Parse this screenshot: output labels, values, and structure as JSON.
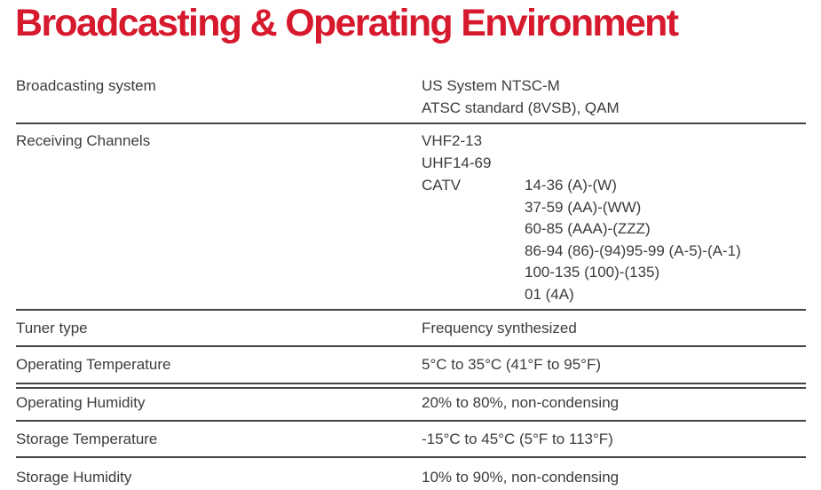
{
  "title": "Broadcasting & Operating Environment",
  "rows": [
    {
      "label": "Broadcasting system",
      "values": [
        "US System NTSC-M",
        "ATSC standard (8VSB), QAM"
      ]
    },
    {
      "label": "Receiving Channels",
      "values": [
        "VHF2-13",
        "UHF14-69",
        "CATV"
      ],
      "catv": [
        "14-36 (A)-(W)",
        "37-59 (AA)-(WW)",
        "60-85 (AAA)-(ZZZ)",
        "86-94 (86)-(94)95-99 (A-5)-(A-1)",
        "100-135 (100)-(135)",
        "01 (4A)"
      ]
    },
    {
      "label": "Tuner type",
      "values": [
        "Frequency synthesized"
      ]
    },
    {
      "label": "Operating Temperature",
      "values": [
        "5°C to 35°C (41°F to 95°F)"
      ]
    },
    {
      "label": "Operating Humidity",
      "values": [
        "20% to 80%, non-condensing"
      ]
    },
    {
      "label": "Storage Temperature",
      "values": [
        "-15°C to 45°C (5°F to 113°F)"
      ]
    },
    {
      "label": "Storage Humidity",
      "values": [
        "10% to 90%, non-condensing"
      ]
    }
  ],
  "colors": {
    "title": "#d7192d",
    "text": "#3c3c3c",
    "rule": "#444444"
  }
}
